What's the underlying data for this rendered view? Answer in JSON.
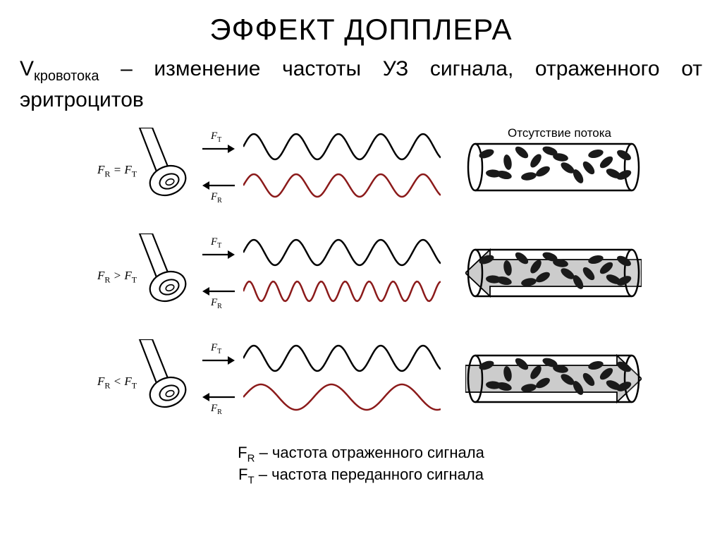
{
  "title": "ЭФФЕКТ ДОППЛЕРА",
  "subtitle_prefix": "V",
  "subtitle_sub": "кровотока",
  "subtitle_rest": " – изменение частоты УЗ сигнала, отраженного от эритроцитов",
  "flow_label": "Отсутствие потока",
  "legend": {
    "fr": "F",
    "fr_sub": "R",
    "fr_text": " – частота отраженного сигнала",
    "ft": "F",
    "ft_sub": "T",
    "ft_text": " – частота переданного сигнала"
  },
  "rows": [
    {
      "equation": "F<sub class='sub2'>R</sub> = F<sub class='sub2'>T</sub>",
      "ft_label": "F<sub class='sub2'>T</sub>",
      "fr_label": "F<sub class='sub2'>R</sub>",
      "wave_top": {
        "cycles": 4.5,
        "amplitude": 18,
        "wavelength": 60,
        "color": "#000000",
        "stroke": 2.5
      },
      "wave_bot": {
        "cycles": 4.5,
        "amplitude": 16,
        "wavelength": 60,
        "color": "#8b1a1a",
        "stroke": 2.5
      },
      "flow_arrow": "none"
    },
    {
      "equation": "F<sub class='sub2'>R</sub> &gt; F<sub class='sub2'>T</sub>",
      "ft_label": "F<sub class='sub2'>T</sub>",
      "fr_label": "F<sub class='sub2'>R</sub>",
      "wave_top": {
        "cycles": 4.5,
        "amplitude": 18,
        "wavelength": 60,
        "color": "#000000",
        "stroke": 2.5
      },
      "wave_bot": {
        "cycles": 8,
        "amplitude": 14,
        "wavelength": 34,
        "color": "#8b1a1a",
        "stroke": 2.5
      },
      "flow_arrow": "left"
    },
    {
      "equation": "F<sub class='sub2'>R</sub> &lt; F<sub class='sub2'>T</sub>",
      "ft_label": "F<sub class='sub2'>T</sub>",
      "fr_label": "F<sub class='sub2'>R</sub>",
      "wave_top": {
        "cycles": 4.5,
        "amplitude": 18,
        "wavelength": 60,
        "color": "#000000",
        "stroke": 2.5
      },
      "wave_bot": {
        "cycles": 2.7,
        "amplitude": 18,
        "wavelength": 100,
        "color": "#8b1a1a",
        "stroke": 2.5
      },
      "flow_arrow": "right"
    }
  ],
  "colors": {
    "transmit_wave": "#000000",
    "receive_wave": "#8b1a1a",
    "vessel_stroke": "#000000",
    "rbc_fill": "#1a1a1a",
    "arrow_fill": "#cccccc"
  }
}
